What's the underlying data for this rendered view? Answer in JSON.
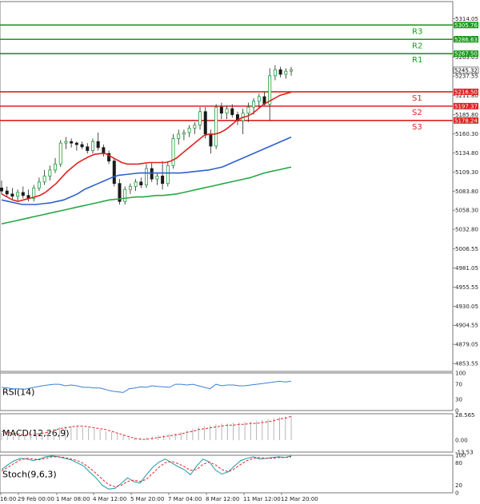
{
  "chart_data": {
    "type": "candlestick",
    "instrument_timeframe": "hourly",
    "main": {
      "ylim": [
        4845,
        5320
      ],
      "y_ticks": [
        "5314.05",
        "5288.55",
        "5263.05",
        "5237.55",
        "5211.80",
        "5185.80",
        "5160.30",
        "5134.80",
        "5109.30",
        "5083.80",
        "5058.30",
        "5032.80",
        "5006.55",
        "4981.05",
        "4955.55",
        "4930.05",
        "4904.55",
        "4879.05",
        "4853.55"
      ],
      "current_price": "5245.32",
      "levels": [
        {
          "name": "R3",
          "value": "5305.76",
          "color": "#1a9a1a"
        },
        {
          "name": "R2",
          "value": "5286.63",
          "color": "#1a9a1a"
        },
        {
          "name": "R1",
          "value": "5267.50",
          "color": "#1a9a1a"
        },
        {
          "name": "S1",
          "value": "5216.50",
          "color": "#dd2222"
        },
        {
          "name": "S2",
          "value": "5197.37",
          "color": "#dd2222"
        },
        {
          "name": "S3",
          "value": "5178.24",
          "color": "#dd2222"
        }
      ],
      "candles": [
        [
          5088,
          5098,
          5080,
          5084
        ],
        [
          5084,
          5090,
          5076,
          5080
        ],
        [
          5080,
          5088,
          5072,
          5077
        ],
        [
          5077,
          5086,
          5070,
          5082
        ],
        [
          5082,
          5090,
          5074,
          5078
        ],
        [
          5078,
          5086,
          5070,
          5074
        ],
        [
          5074,
          5092,
          5070,
          5088
        ],
        [
          5088,
          5102,
          5084,
          5096
        ],
        [
          5096,
          5112,
          5092,
          5104
        ],
        [
          5104,
          5118,
          5098,
          5112
        ],
        [
          5112,
          5128,
          5108,
          5120
        ],
        [
          5120,
          5152,
          5116,
          5148
        ],
        [
          5148,
          5156,
          5140,
          5150
        ],
        [
          5150,
          5154,
          5142,
          5148
        ],
        [
          5148,
          5150,
          5138,
          5146
        ],
        [
          5146,
          5150,
          5140,
          5143
        ],
        [
          5143,
          5148,
          5134,
          5138
        ],
        [
          5138,
          5154,
          5134,
          5150
        ],
        [
          5150,
          5162,
          5138,
          5142
        ],
        [
          5142,
          5146,
          5130,
          5134
        ],
        [
          5134,
          5138,
          5120,
          5124
        ],
        [
          5124,
          5128,
          5090,
          5094
        ],
        [
          5094,
          5100,
          5066,
          5070
        ],
        [
          5070,
          5090,
          5066,
          5086
        ],
        [
          5086,
          5094,
          5080,
          5090
        ],
        [
          5090,
          5100,
          5084,
          5096
        ],
        [
          5096,
          5102,
          5088,
          5092
        ],
        [
          5092,
          5120,
          5088,
          5114
        ],
        [
          5114,
          5122,
          5096,
          5100
        ],
        [
          5100,
          5108,
          5092,
          5104
        ],
        [
          5104,
          5124,
          5086,
          5094
        ],
        [
          5094,
          5122,
          5090,
          5118
        ],
        [
          5118,
          5160,
          5114,
          5154
        ],
        [
          5154,
          5166,
          5146,
          5160
        ],
        [
          5160,
          5166,
          5152,
          5162
        ],
        [
          5162,
          5172,
          5156,
          5168
        ],
        [
          5168,
          5176,
          5160,
          5172
        ],
        [
          5172,
          5196,
          5166,
          5190
        ],
        [
          5190,
          5196,
          5154,
          5160
        ],
        [
          5160,
          5166,
          5134,
          5144
        ],
        [
          5144,
          5200,
          5140,
          5196
        ],
        [
          5196,
          5202,
          5180,
          5188
        ],
        [
          5188,
          5198,
          5180,
          5194
        ],
        [
          5194,
          5200,
          5182,
          5186
        ],
        [
          5186,
          5190,
          5172,
          5178
        ],
        [
          5178,
          5194,
          5160,
          5188
        ],
        [
          5188,
          5202,
          5176,
          5196
        ],
        [
          5196,
          5208,
          5186,
          5204
        ],
        [
          5204,
          5214,
          5194,
          5210
        ],
        [
          5210,
          5216,
          5198,
          5200
        ],
        [
          5200,
          5248,
          5178,
          5238
        ],
        [
          5238,
          5252,
          5232,
          5246
        ],
        [
          5246,
          5250,
          5236,
          5240
        ],
        [
          5240,
          5248,
          5234,
          5244
        ],
        [
          5244,
          5250,
          5238,
          5246
        ]
      ],
      "ma_fast": [
        5080,
        5076,
        5072,
        5070,
        5072,
        5074,
        5076,
        5078,
        5082,
        5088,
        5094,
        5102,
        5110,
        5116,
        5122,
        5126,
        5130,
        5133,
        5134,
        5134,
        5130,
        5126,
        5122,
        5120,
        5120,
        5120,
        5121,
        5122,
        5122,
        5122,
        5122,
        5124,
        5128,
        5134,
        5140,
        5146,
        5152,
        5158,
        5160,
        5160,
        5162,
        5166,
        5172,
        5178,
        5182,
        5184,
        5188,
        5194,
        5200,
        5204,
        5208,
        5212,
        5214,
        5216
      ],
      "ma_mid": [
        5072,
        5070,
        5068,
        5066,
        5066,
        5066,
        5067,
        5068,
        5070,
        5072,
        5076,
        5080,
        5086,
        5090,
        5094,
        5098,
        5102,
        5105,
        5106,
        5107,
        5108,
        5108,
        5108,
        5108,
        5108,
        5108,
        5108,
        5109,
        5110,
        5111,
        5112,
        5114,
        5116,
        5120,
        5124,
        5128,
        5132,
        5136,
        5140,
        5144,
        5148,
        5152,
        5156
      ],
      "ma_slow": [
        5040,
        5042,
        5044,
        5046,
        5048,
        5050,
        5052,
        5054,
        5056,
        5058,
        5060,
        5062,
        5064,
        5066,
        5068,
        5070,
        5072,
        5073,
        5074,
        5075,
        5076,
        5076,
        5077,
        5078,
        5078,
        5079,
        5080,
        5082,
        5084,
        5086,
        5088,
        5090,
        5092,
        5094,
        5096,
        5098,
        5100,
        5102,
        5105,
        5108,
        5110,
        5112,
        5114,
        5116
      ]
    },
    "rsi": {
      "title": "RSI(14)",
      "ylim": [
        0,
        100
      ],
      "ticks": [
        "100",
        "70",
        "30",
        "0"
      ],
      "values": [
        62,
        60,
        58,
        58,
        57,
        60,
        63,
        66,
        68,
        70,
        70,
        66,
        68,
        66,
        62,
        62,
        60,
        60,
        56,
        52,
        50,
        48,
        58,
        60,
        63,
        62,
        66,
        64,
        63,
        62,
        70,
        70,
        68,
        70,
        66,
        62,
        58,
        70,
        66,
        68,
        68,
        66,
        66,
        68,
        70,
        72,
        74,
        76,
        78,
        76,
        78
      ]
    },
    "macd": {
      "title": "MACD(12,26,9)",
      "ticks": [
        "28.565",
        "0.00",
        "-13.53"
      ],
      "histogram": [
        8,
        8,
        7,
        6,
        6,
        7,
        8,
        10,
        12,
        13,
        15,
        16,
        16,
        16,
        15,
        14,
        13,
        12,
        10,
        9,
        8,
        6,
        4,
        3,
        3,
        3,
        4,
        5,
        6,
        7,
        8,
        9,
        11,
        13,
        15,
        16,
        17,
        18,
        19,
        19,
        20,
        20,
        21,
        21,
        22,
        23,
        24,
        25,
        26,
        27,
        28
      ],
      "signal": [
        10,
        9,
        8,
        7,
        6,
        6,
        7,
        8,
        9,
        11,
        13,
        14,
        15,
        16,
        16,
        15,
        14,
        13,
        12,
        10,
        8,
        6,
        4,
        2,
        1,
        1,
        2,
        3,
        4,
        5,
        6,
        7,
        9,
        10,
        12,
        13,
        14,
        15,
        16,
        17,
        17,
        18,
        18,
        19,
        19,
        20,
        21,
        22,
        24,
        25,
        27
      ]
    },
    "stoch": {
      "title": "Stoch(9,6,3)",
      "ylim": [
        0,
        100
      ],
      "ticks": [
        "100",
        "80",
        "20",
        "0"
      ],
      "k": [
        62,
        75,
        85,
        92,
        90,
        86,
        90,
        96,
        98,
        96,
        92,
        88,
        80,
        72,
        55,
        40,
        20,
        10,
        12,
        25,
        40,
        30,
        26,
        48,
        68,
        82,
        90,
        80,
        70,
        62,
        48,
        72,
        90,
        82,
        60,
        50,
        56,
        72,
        86,
        92,
        96,
        90,
        92,
        94,
        96,
        94,
        98
      ],
      "d": [
        58,
        68,
        78,
        88,
        92,
        90,
        88,
        92,
        96,
        96,
        94,
        90,
        86,
        78,
        66,
        52,
        36,
        22,
        16,
        20,
        30,
        34,
        30,
        36,
        52,
        68,
        80,
        84,
        78,
        70,
        60,
        62,
        76,
        82,
        74,
        62,
        56,
        64,
        76,
        86,
        92,
        94,
        92,
        92,
        94,
        94,
        96
      ]
    },
    "x_ticks": [
      "16:00",
      "29 Feb 00:00",
      "1 Mar 08:00",
      "4 Mar 12:00",
      "5 Mar 20:00",
      "7 Mar 04:00",
      "8 Mar 12:00",
      "11 Mar 12:00",
      "12 Mar 20:00"
    ]
  }
}
